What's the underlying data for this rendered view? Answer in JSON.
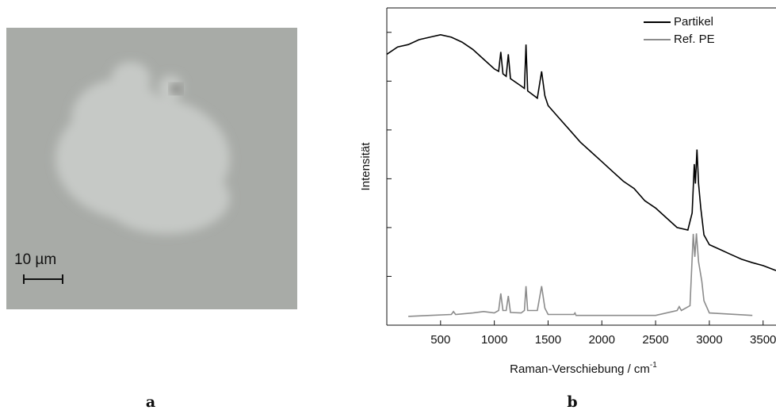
{
  "image": {
    "scale_label": "10 µm",
    "caption": "a"
  },
  "chart_data": {
    "type": "line",
    "caption": "b",
    "xlabel": "Raman-Verschiebung / cm",
    "xlabel_superscript": "-1",
    "ylabel": "Intensität",
    "xlim": [
      0,
      3620
    ],
    "xticks": [
      500,
      1000,
      1500,
      2000,
      2500,
      3000,
      3500
    ],
    "ylim": [
      0,
      6.5
    ],
    "yticks": [
      0,
      1,
      2,
      3,
      4,
      5,
      6
    ],
    "legend": "upper right",
    "series": [
      {
        "name": "Partikel",
        "color": "#000000",
        "x": [
          0,
          100,
          200,
          300,
          400,
          500,
          600,
          700,
          800,
          900,
          1000,
          1040,
          1060,
          1080,
          1110,
          1130,
          1150,
          1250,
          1280,
          1295,
          1310,
          1400,
          1440,
          1470,
          1500,
          1600,
          1700,
          1800,
          1900,
          2000,
          2100,
          2200,
          2300,
          2400,
          2500,
          2600,
          2700,
          2800,
          2840,
          2860,
          2870,
          2885,
          2900,
          2920,
          2950,
          3000,
          3100,
          3200,
          3300,
          3400,
          3500,
          3620
        ],
        "values": [
          5.55,
          5.7,
          5.75,
          5.85,
          5.9,
          5.95,
          5.9,
          5.8,
          5.65,
          5.45,
          5.25,
          5.2,
          5.6,
          5.15,
          5.1,
          5.55,
          5.05,
          4.9,
          4.85,
          5.75,
          4.8,
          4.65,
          5.2,
          4.7,
          4.5,
          4.25,
          4.0,
          3.75,
          3.55,
          3.35,
          3.15,
          2.95,
          2.8,
          2.55,
          2.4,
          2.2,
          2.0,
          1.95,
          2.3,
          3.3,
          2.9,
          3.6,
          2.9,
          2.4,
          1.85,
          1.65,
          1.55,
          1.45,
          1.35,
          1.28,
          1.22,
          1.12
        ]
      },
      {
        "name": "Ref. PE",
        "color": "#8c8c8c",
        "x": [
          200,
          400,
          600,
          620,
          640,
          800,
          900,
          1000,
          1040,
          1060,
          1080,
          1110,
          1130,
          1150,
          1250,
          1280,
          1295,
          1310,
          1400,
          1440,
          1470,
          1500,
          1740,
          1750,
          1760,
          2500,
          2700,
          2720,
          2740,
          2820,
          2850,
          2865,
          2880,
          2900,
          2930,
          2950,
          3000,
          3400
        ],
        "values": [
          0.18,
          0.2,
          0.22,
          0.28,
          0.22,
          0.25,
          0.28,
          0.25,
          0.3,
          0.65,
          0.3,
          0.3,
          0.6,
          0.26,
          0.25,
          0.3,
          0.8,
          0.3,
          0.3,
          0.8,
          0.35,
          0.22,
          0.22,
          0.25,
          0.2,
          0.2,
          0.3,
          0.38,
          0.3,
          0.4,
          1.87,
          1.4,
          1.88,
          1.3,
          0.9,
          0.5,
          0.25,
          0.2
        ]
      }
    ]
  }
}
